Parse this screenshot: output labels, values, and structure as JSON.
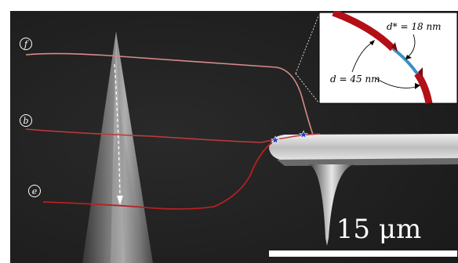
{
  "labels": {
    "wire_f": "f",
    "wire_b": "b",
    "wire_e": "e"
  },
  "inset": {
    "d_star": "d* = 18 nm",
    "d": "d = 45 nm"
  },
  "scale_bar": {
    "text": "15 μm"
  },
  "colors": {
    "background": "#1e1e1e",
    "wire_f": "#d98a8a",
    "wire_b": "#c23a3a",
    "wire_e": "#b82020",
    "inset_thick": "#b30f17",
    "inset_thin": "#3a8fc2",
    "star": "#1f3fd6"
  }
}
